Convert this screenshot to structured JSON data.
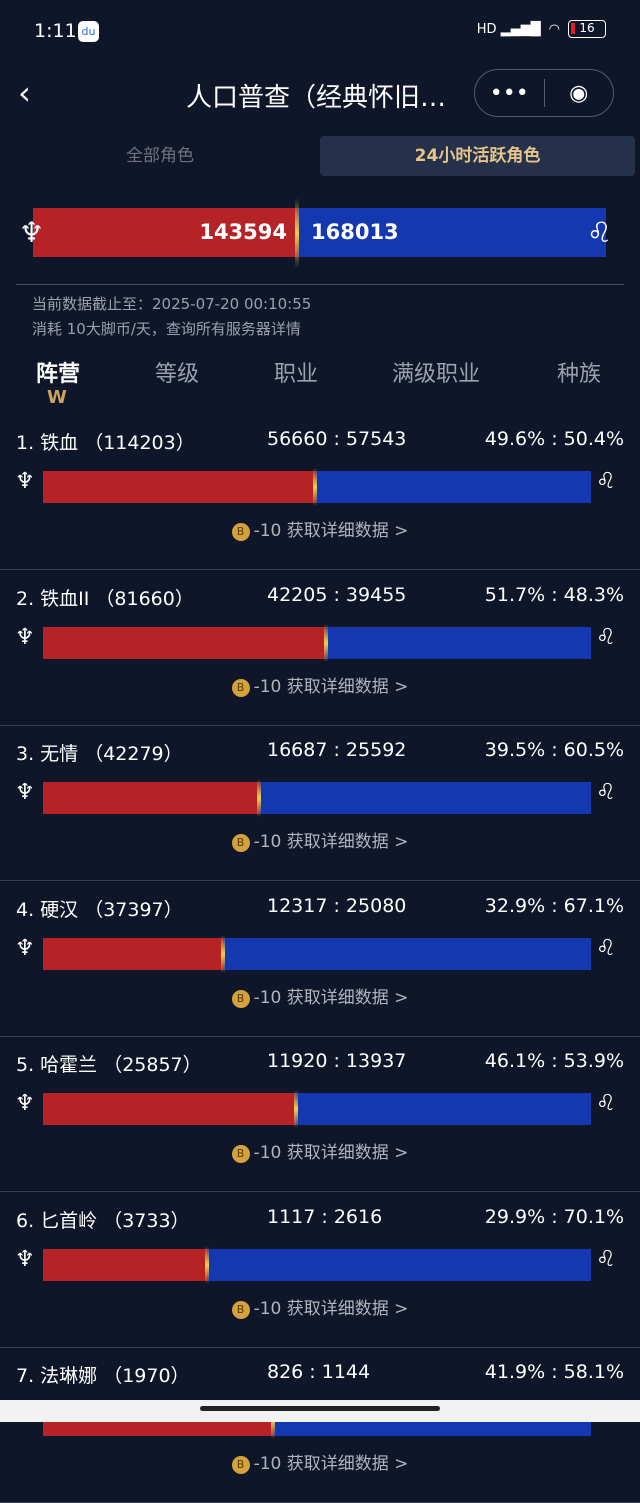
{
  "status": {
    "time": "1:11",
    "battery": "16",
    "network": "HD"
  },
  "nav": {
    "title": "人口普查（经典怀旧…",
    "more": "•••",
    "close": "◉"
  },
  "segments": {
    "all": "全部角色",
    "active": "24小时活跃角色",
    "selected": "active"
  },
  "total": {
    "horde": "143594",
    "alliance": "168013",
    "horde_fraction": 0.461
  },
  "info": {
    "line1": "当前数据截止至：2025-07-20 00:10:55",
    "line2": "消耗 10大脚币/天，查询所有服务器详情"
  },
  "tabs": [
    "阵营",
    "等级",
    "职业",
    "满级职业",
    "种族"
  ],
  "colors": {
    "horde": "#b52326",
    "alliance": "#1438b0",
    "accent": "#e6c48a",
    "background": "#0f1629"
  },
  "link_text": "-10 获取详细数据 >",
  "servers": [
    {
      "name": "1. 铁血 （114203）",
      "counts": "56660 : 57543",
      "pct": "49.6% : 50.4%",
      "horde_pct": 49.6
    },
    {
      "name": "2. 铁血II （81660）",
      "counts": "42205 : 39455",
      "pct": "51.7% : 48.3%",
      "horde_pct": 51.7
    },
    {
      "name": "3. 无情 （42279）",
      "counts": "16687 : 25592",
      "pct": "39.5% : 60.5%",
      "horde_pct": 39.5
    },
    {
      "name": "4. 硬汉 （37397）",
      "counts": "12317 : 25080",
      "pct": "32.9% : 67.1%",
      "horde_pct": 32.9
    },
    {
      "name": "5. 哈霍兰 （25857）",
      "counts": "11920 : 13937",
      "pct": "46.1% : 53.9%",
      "horde_pct": 46.1
    },
    {
      "name": "6. 匕首岭 （3733）",
      "counts": "1117 : 2616",
      "pct": "29.9% : 70.1%",
      "horde_pct": 29.9
    },
    {
      "name": "7. 法琳娜 （1970）",
      "counts": "826 : 1144",
      "pct": "41.9% : 58.1%",
      "horde_pct": 41.9
    }
  ]
}
